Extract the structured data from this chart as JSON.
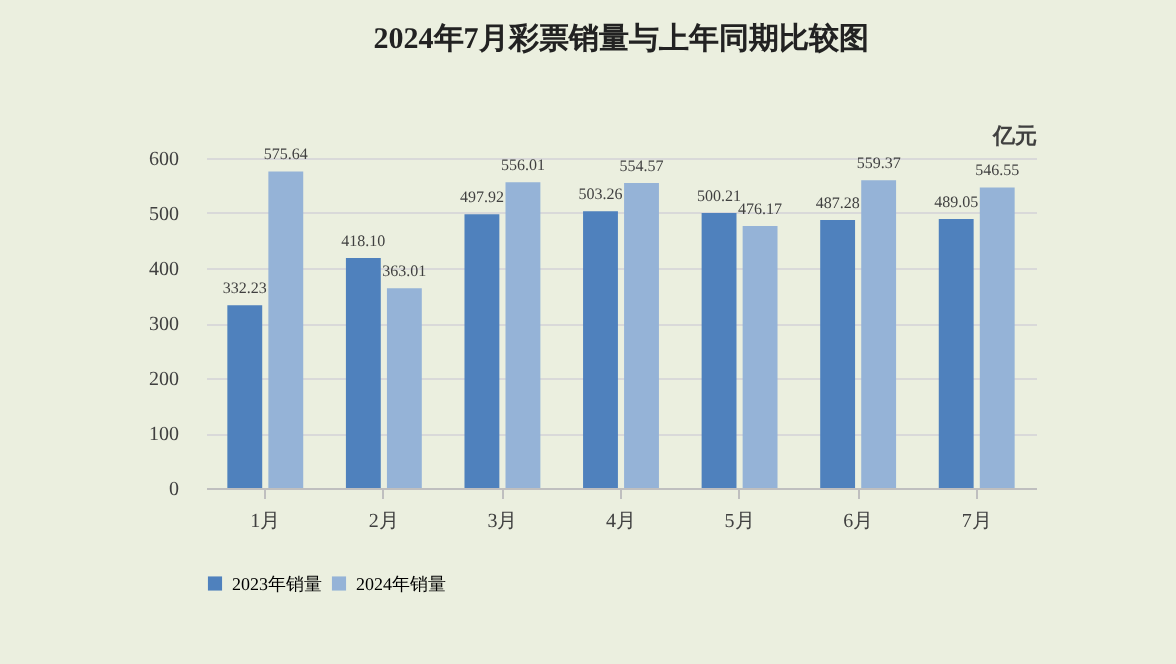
{
  "chart_data": {
    "type": "bar",
    "title": "2024年7月彩票销量与上年同期比较图",
    "ylabel": "亿元",
    "categories": [
      "1月",
      "2月",
      "3月",
      "4月",
      "5月",
      "6月",
      "7月"
    ],
    "series": [
      {
        "name": "2023年销量",
        "color": "#4f81bd",
        "values": [
          332.23,
          418.1,
          497.92,
          503.26,
          500.21,
          487.28,
          489.05
        ],
        "value_labels": [
          "332.23",
          "418.10",
          "497.92",
          "503.26",
          "500.21",
          "487.28",
          "489.05"
        ]
      },
      {
        "name": "2024年销量",
        "color": "#95b3d7",
        "values": [
          575.64,
          363.01,
          556.01,
          554.57,
          476.17,
          559.37,
          546.55
        ],
        "value_labels": [
          "575.64",
          "363.01",
          "556.01",
          "554.57",
          "476.17",
          "559.37",
          "546.55"
        ]
      }
    ],
    "ylim": [
      0,
      600
    ],
    "yticks": [
      0,
      100,
      200,
      300,
      400,
      500,
      600
    ],
    "grid": "y",
    "legend": "bottom"
  }
}
